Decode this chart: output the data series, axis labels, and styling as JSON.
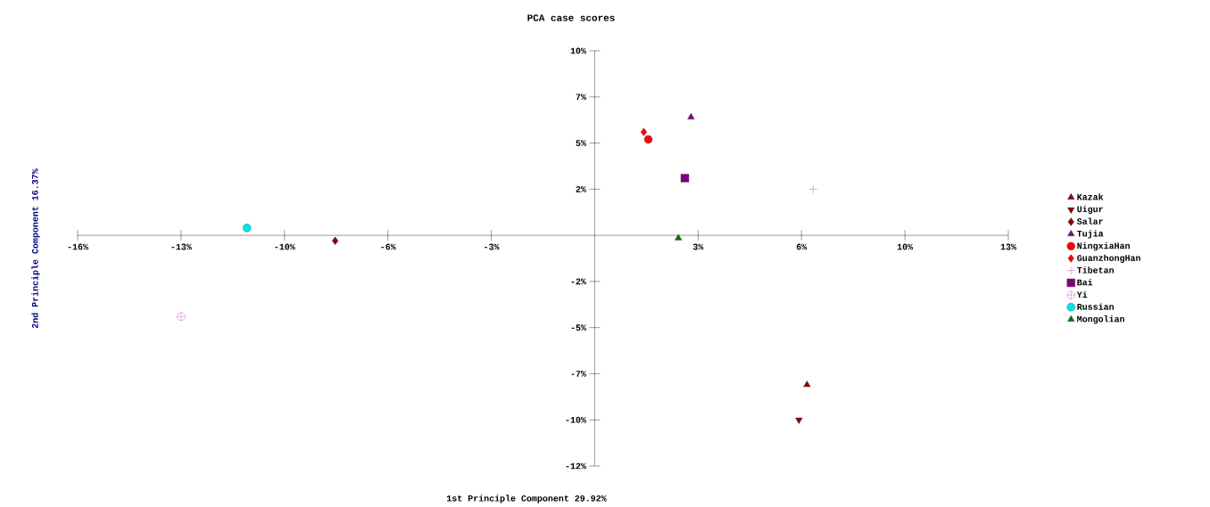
{
  "chart_data": {
    "type": "scatter",
    "title": "PCA case scores",
    "xlabel": "1st Principle Component 29.92%",
    "ylabel": "2nd Principle Component 16.37%",
    "xlim": [
      -16,
      12.8
    ],
    "ylim": [
      -12.5,
      10
    ],
    "xticks": [
      {
        "value": -16,
        "label": "-16%"
      },
      {
        "value": -12.8,
        "label": "-13%"
      },
      {
        "value": -9.6,
        "label": "-10%"
      },
      {
        "value": -6.4,
        "label": "-6%"
      },
      {
        "value": -3.2,
        "label": "-3%"
      },
      {
        "value": 3.2,
        "label": "3%"
      },
      {
        "value": 6.4,
        "label": "6%"
      },
      {
        "value": 9.6,
        "label": "10%"
      },
      {
        "value": 12.8,
        "label": "13%"
      }
    ],
    "yticks": [
      {
        "value": -12.5,
        "label": "-12%"
      },
      {
        "value": -10,
        "label": "-10%"
      },
      {
        "value": -7.5,
        "label": "-7%"
      },
      {
        "value": -5,
        "label": "-5%"
      },
      {
        "value": -2.5,
        "label": "-2%"
      },
      {
        "value": 2.5,
        "label": "2%"
      },
      {
        "value": 5,
        "label": "5%"
      },
      {
        "value": 7.5,
        "label": "7%"
      },
      {
        "value": 10,
        "label": "10%"
      }
    ],
    "legend": "right",
    "series": [
      {
        "name": "Kazak",
        "color": "#8b0000",
        "marker": "triangle",
        "x": [
          6.57
        ],
        "values": [
          -8.1
        ]
      },
      {
        "name": "Uigur",
        "color": "#8b0000",
        "marker": "triangle-down",
        "x": [
          6.32
        ],
        "values": [
          -10.0
        ]
      },
      {
        "name": "Salar",
        "color": "#8b0000",
        "marker": "diamond",
        "x": [
          -8.03
        ],
        "values": [
          -0.3
        ]
      },
      {
        "name": "Tujia",
        "color": "#800080",
        "marker": "triangle",
        "x": [
          2.98
        ],
        "values": [
          6.4
        ]
      },
      {
        "name": "NingxiaHan",
        "color": "#ff0000",
        "marker": "circle",
        "x": [
          1.66
        ],
        "values": [
          5.2
        ]
      },
      {
        "name": "GuanzhongHan",
        "color": "#ff0000",
        "marker": "diamond",
        "x": [
          1.52
        ],
        "values": [
          5.6
        ]
      },
      {
        "name": "Tibetan",
        "color": "#b030b0",
        "marker": "cross",
        "x": [
          6.76
        ],
        "values": [
          2.5
        ]
      },
      {
        "name": "Bai",
        "color": "#800080",
        "marker": "square",
        "x": [
          2.79
        ],
        "values": [
          3.1
        ]
      },
      {
        "name": "Yi",
        "color": "#c040c0",
        "x": [
          -12.8
        ],
        "values": [
          -4.4
        ]
      },
      {
        "name": "Russian",
        "color": "#00e5ee",
        "marker": "circle",
        "x": [
          -10.76
        ],
        "values": [
          0.4
        ]
      },
      {
        "name": "Mongolian",
        "color": "#007000",
        "marker": "triangle",
        "x": [
          2.59
        ],
        "values": [
          -0.15
        ]
      }
    ]
  }
}
